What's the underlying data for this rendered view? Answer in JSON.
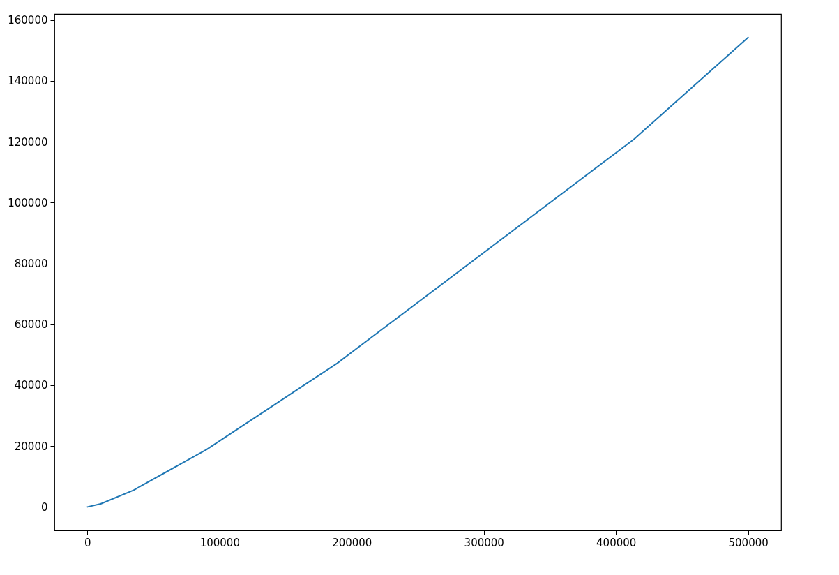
{
  "chart_data": {
    "type": "line",
    "x": [
      0,
      10000,
      35000,
      40600,
      90000,
      189000,
      413500,
      500000
    ],
    "series": [
      {
        "color": "#1f77b4",
        "values": [
          0,
          1000,
          5500,
          6900,
          18800,
          47200,
          120800,
          154300
        ]
      }
    ],
    "xlim": [
      -25000,
      525000
    ],
    "xticks": [
      0,
      100000,
      200000,
      300000,
      400000,
      500000
    ],
    "ylim": [
      -7715,
      162015
    ],
    "yticks": [
      0,
      20000,
      40000,
      60000,
      80000,
      100000,
      120000,
      140000,
      160000
    ],
    "grid": false,
    "marker": "none",
    "line_style": "solid"
  }
}
